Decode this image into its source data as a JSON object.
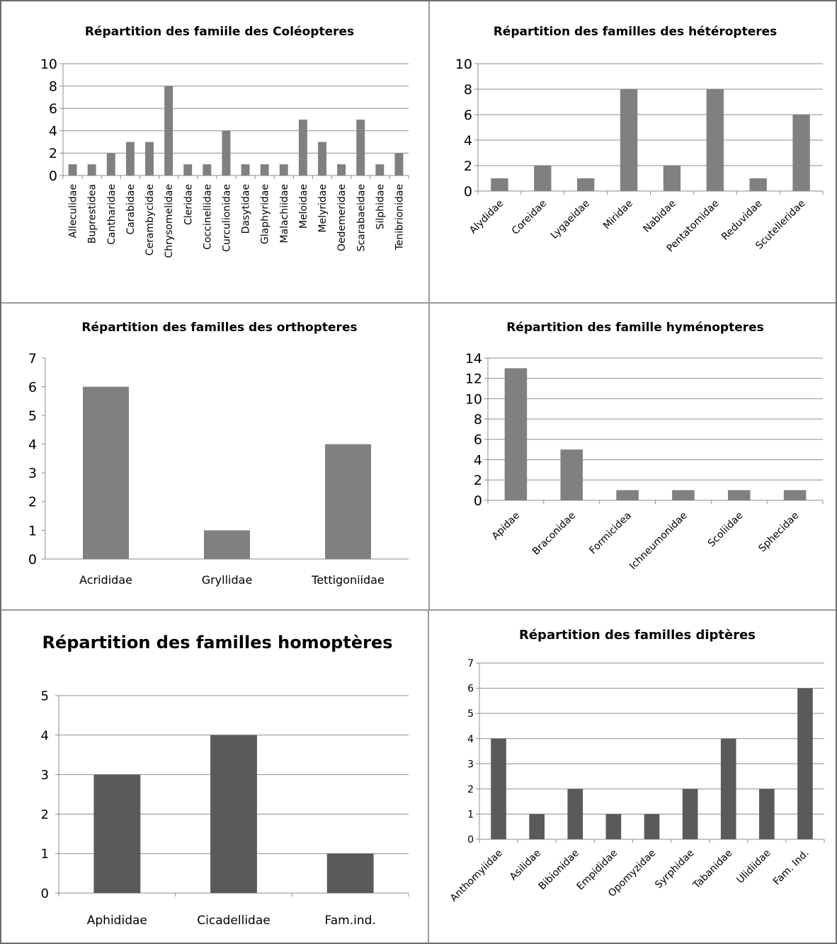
{
  "chart_data": [
    {
      "type": "bar",
      "title": "Répartition des famiile des Coléopteres",
      "categories": [
        "Alleculidae",
        "Buprestidea",
        "Cantharidae",
        "Carabidae",
        "Cerambycidae",
        "Chrysomelidae",
        "Cleridae",
        "Coccinellidae",
        "Curculionidae",
        "Dasytidae",
        "Glaphyridae",
        "Malachiidae",
        "Meloidae",
        "Melyridae",
        "Oedemeridae",
        "Scarabaeidae",
        "Silphidae",
        "Tenibrionidae"
      ],
      "values": [
        1,
        1,
        2,
        3,
        3,
        8,
        1,
        1,
        4,
        1,
        1,
        1,
        5,
        3,
        1,
        5,
        1,
        2
      ],
      "yticks": [
        "0",
        "2",
        "4",
        "6",
        "8",
        "10"
      ],
      "ylim": [
        0,
        10
      ],
      "xlabel": "",
      "ylabel": "",
      "grid": true,
      "bar_color": "#808080"
    },
    {
      "type": "bar",
      "title": "Répartition des familles des hétéropteres",
      "categories": [
        "Alydidae",
        "Coreidae",
        "Lygaeidae",
        "Miridae",
        "Nabidae",
        "Pentatomidae",
        "Reduvidae",
        "Scutelleridae"
      ],
      "values": [
        1,
        2,
        1,
        8,
        2,
        8,
        1,
        6
      ],
      "yticks": [
        "0",
        "2",
        "4",
        "6",
        "8",
        "10"
      ],
      "ylim": [
        0,
        10
      ],
      "xlabel": "",
      "ylabel": "",
      "grid": true,
      "bar_color": "#808080"
    },
    {
      "type": "bar",
      "title": "Répartition des familles des orthopteres",
      "categories": [
        "Acrididae",
        "Gryllidae",
        "Tettigoniidae"
      ],
      "values": [
        6,
        1,
        4
      ],
      "yticks": [
        "0",
        "1",
        "2",
        "3",
        "4",
        "5",
        "6",
        "7"
      ],
      "ylim": [
        0,
        7
      ],
      "xlabel": "",
      "ylabel": "",
      "grid": false,
      "bar_color": "#808080"
    },
    {
      "type": "bar",
      "title": "Répartition des famille hyménopteres",
      "categories": [
        "Apidae",
        "Braconidae",
        "Formicidea",
        "Ichneumonidae",
        "Scoliidae",
        "Sphecidae"
      ],
      "values": [
        13,
        5,
        1,
        1,
        1,
        1
      ],
      "yticks": [
        "0",
        "2",
        "4",
        "6",
        "8",
        "10",
        "12",
        "14"
      ],
      "ylim": [
        0,
        14
      ],
      "xlabel": "",
      "ylabel": "",
      "grid": true,
      "bar_color": "#808080"
    },
    {
      "type": "bar",
      "title": "Répartition des familles homoptères",
      "categories": [
        "Aphididae",
        "Cicadellidae",
        "Fam.ind."
      ],
      "values": [
        3,
        4,
        1
      ],
      "yticks": [
        "0",
        "1",
        "2",
        "3",
        "4",
        "5"
      ],
      "ylim": [
        0,
        5
      ],
      "xlabel": "",
      "ylabel": "",
      "grid": true,
      "bar_color": "#5a5a5a"
    },
    {
      "type": "bar",
      "title": "Répartition des familles diptères",
      "categories": [
        "Anthomyiidae",
        "Asilidae",
        "Bibionidae",
        "Empididae",
        "Opomyzidae",
        "Syrphidae",
        "Tabanidae",
        "Ulidiidae",
        "Fam. Ind."
      ],
      "values": [
        4,
        1,
        2,
        1,
        1,
        2,
        4,
        2,
        6
      ],
      "yticks": [
        "0",
        "1",
        "2",
        "3",
        "4",
        "5",
        "6",
        "7"
      ],
      "ylim": [
        0,
        7
      ],
      "xlabel": "",
      "ylabel": "",
      "grid": true,
      "bar_color": "#5a5a5a"
    }
  ]
}
